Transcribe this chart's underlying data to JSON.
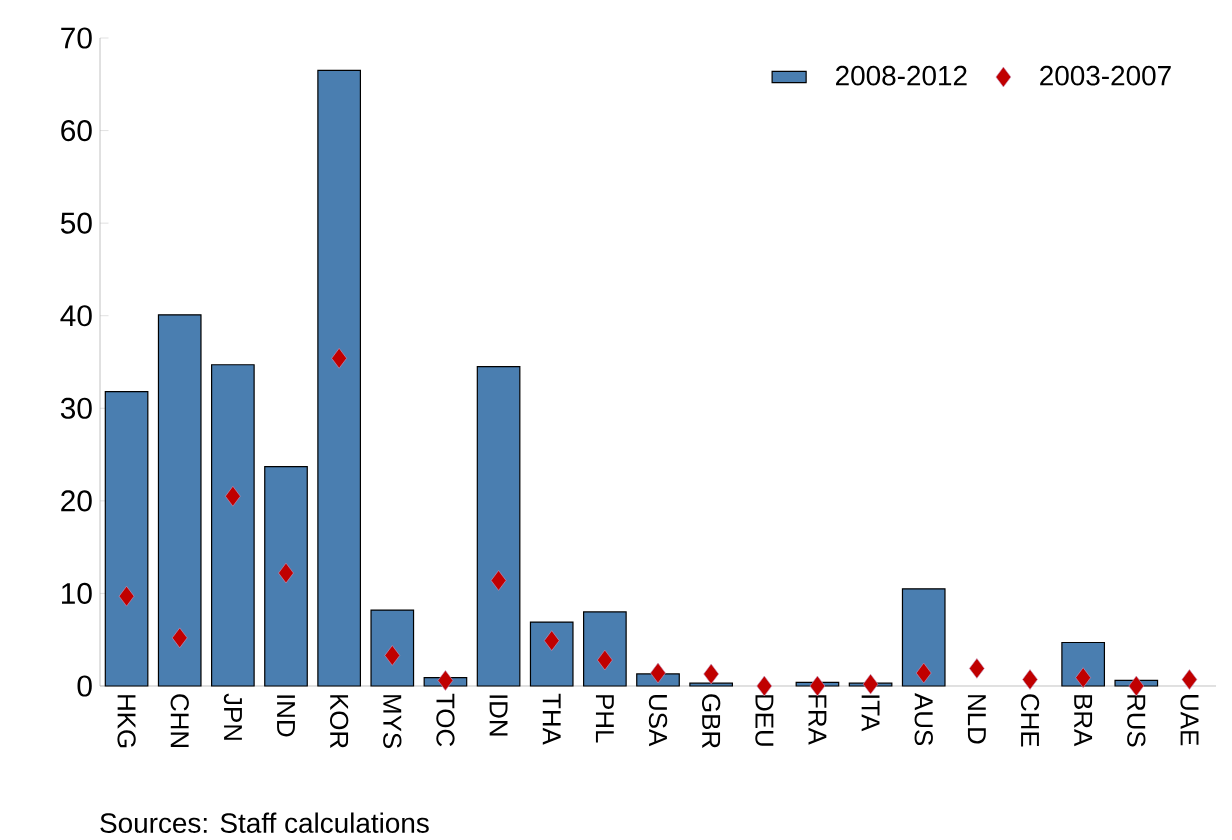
{
  "chart_data": {
    "type": "bar",
    "categories": [
      "HKG",
      "CHN",
      "JPN",
      "IND",
      "KOR",
      "MYS",
      "TOC",
      "IDN",
      "THA",
      "PHL",
      "USA",
      "GBR",
      "DEU",
      "FRA",
      "ITA",
      "AUS",
      "NLD",
      "CHE",
      "BRA",
      "RUS",
      "UAE"
    ],
    "series": [
      {
        "name": "2008-2012",
        "color": "#4a7eb0",
        "values": [
          31.8,
          40.1,
          34.7,
          23.7,
          66.5,
          8.2,
          0.9,
          34.5,
          6.9,
          8.0,
          1.3,
          0.3,
          null,
          0.4,
          0.3,
          10.5,
          null,
          null,
          4.7,
          0.6,
          null
        ]
      },
      {
        "name": "2003-2007",
        "type": "scatter",
        "marker": "diamond",
        "color": "#c00000",
        "values": [
          9.7,
          5.2,
          20.5,
          12.2,
          35.4,
          3.3,
          0.6,
          11.4,
          4.9,
          2.8,
          1.4,
          1.3,
          0.0,
          0.0,
          0.2,
          1.4,
          1.9,
          0.7,
          0.9,
          0.0,
          0.7
        ]
      }
    ],
    "ylim": [
      0,
      70
    ],
    "yticks": [
      0,
      10,
      20,
      30,
      40,
      50,
      60,
      70
    ],
    "legend": "top right",
    "grid": false,
    "annotations": [
      "Sources: Staff calculations"
    ]
  }
}
